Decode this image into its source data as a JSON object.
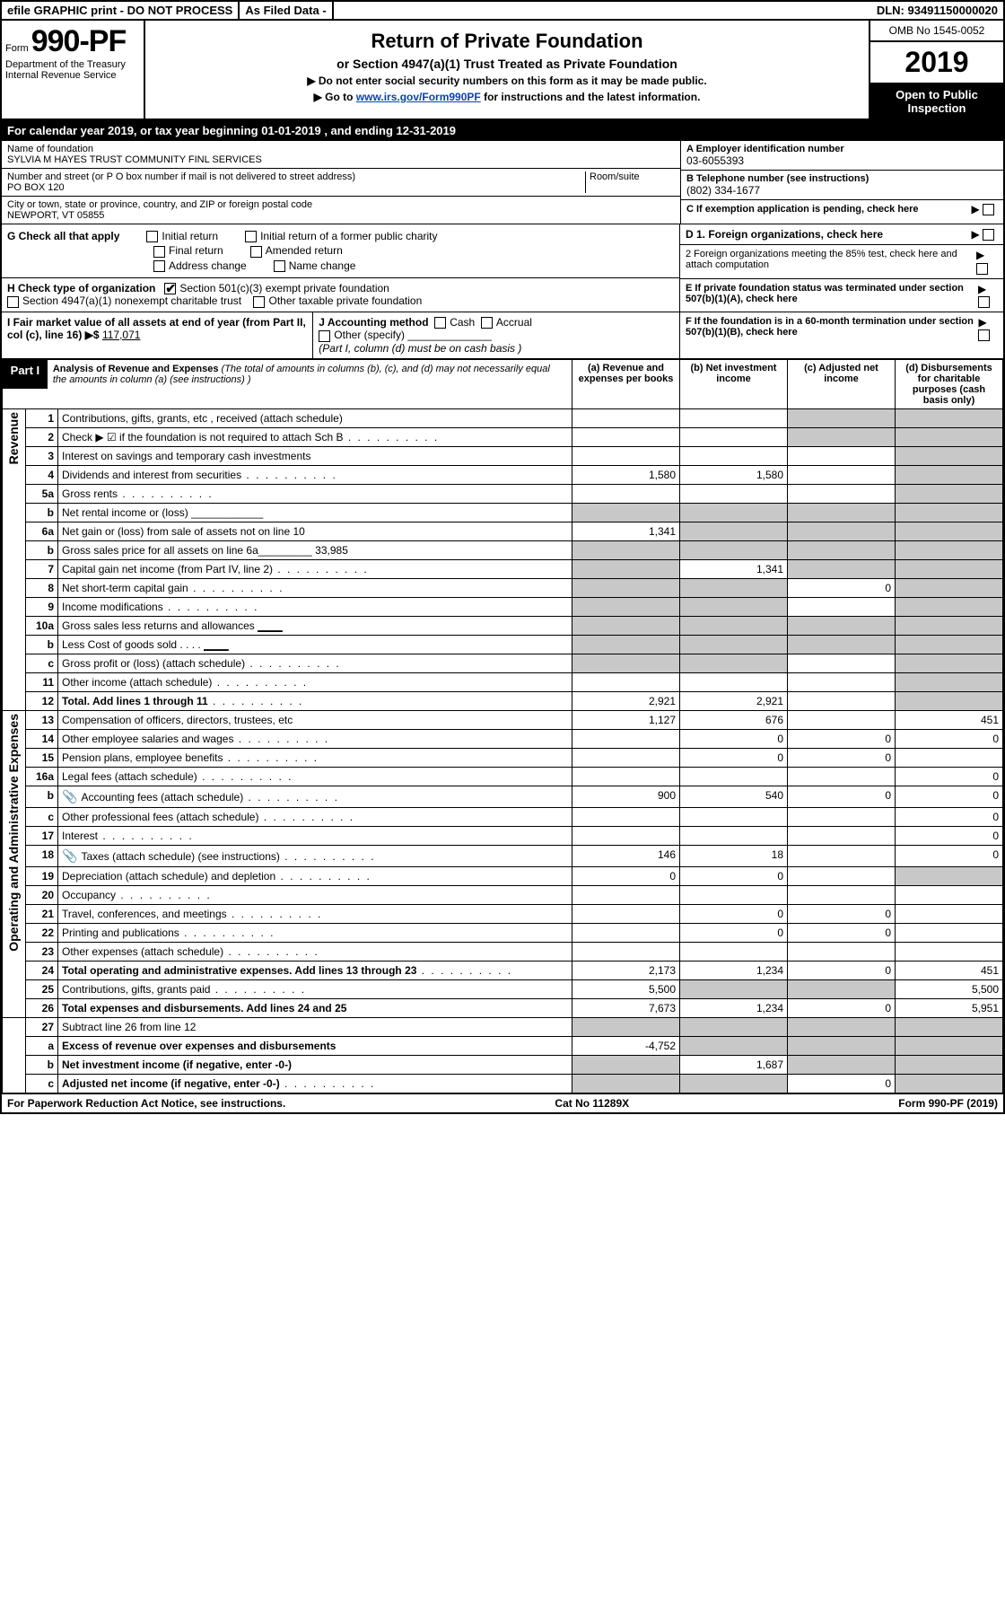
{
  "top": {
    "efile": "efile GRAPHIC print - DO NOT PROCESS",
    "asfiled": "As Filed Data -",
    "dln": "DLN: 93491150000020"
  },
  "header": {
    "form_prefix": "Form",
    "form_no": "990-PF",
    "dept": "Department of the Treasury",
    "irs": "Internal Revenue Service",
    "title": "Return of Private Foundation",
    "subtitle": "or Section 4947(a)(1) Trust Treated as Private Foundation",
    "line1": "▶ Do not enter social security numbers on this form as it may be made public.",
    "line2_pre": "▶ Go to ",
    "line2_link": "www.irs.gov/Form990PF",
    "line2_post": " for instructions and the latest information.",
    "omb": "OMB No 1545-0052",
    "year": "2019",
    "open": "Open to Public Inspection"
  },
  "cal": "For calendar year 2019, or tax year beginning 01-01-2019            , and ending 12-31-2019",
  "entity": {
    "name_label": "Name of foundation",
    "name": "SYLVIA M HAYES TRUST COMMUNITY FINL SERVICES",
    "addr_label": "Number and street (or P O  box number if mail is not delivered to street address)",
    "room_label": "Room/suite",
    "addr": "PO BOX 120",
    "city_label": "City or town, state or province, country, and ZIP or foreign postal code",
    "city": "NEWPORT, VT  05855",
    "a_label": "A Employer identification number",
    "a_val": "03-6055393",
    "b_label": "B Telephone number (see instructions)",
    "b_val": "(802) 334-1677",
    "c_label": "C If exemption application is pending, check here"
  },
  "g": {
    "label": "G Check all that apply",
    "opts": [
      "Initial return",
      "Initial return of a former public charity",
      "Final return",
      "Amended return",
      "Address change",
      "Name change"
    ]
  },
  "h": {
    "label": "H Check type of organization",
    "o1": "Section 501(c)(3) exempt private foundation",
    "o2": "Section 4947(a)(1) nonexempt charitable trust",
    "o3": "Other taxable private foundation"
  },
  "i": {
    "label": "I Fair market value of all assets at end of year (from Part II, col  (c), line 16) ▶$ ",
    "val": "117,071"
  },
  "j": {
    "label": "J Accounting method",
    "cash": "Cash",
    "accrual": "Accrual",
    "other": "Other (specify)",
    "note": "(Part I, column (d) must be on cash basis )"
  },
  "d": {
    "d1": "D 1. Foreign organizations, check here",
    "d2": "2  Foreign organizations meeting the 85% test, check here and attach computation"
  },
  "e": "E  If private foundation status was terminated under section 507(b)(1)(A), check here",
  "f": "F  If the foundation is in a 60-month termination under section 507(b)(1)(B), check here",
  "part1": {
    "label": "Part I",
    "title": "Analysis of Revenue and Expenses",
    "note": "(The total of amounts in columns (b), (c), and (d) may not necessarily equal the amounts in column (a) (see instructions) )",
    "col_a": "(a) Revenue and expenses per books",
    "col_b": "(b) Net investment income",
    "col_c": "(c) Adjusted net income",
    "col_d": "(d) Disbursements for charitable purposes (cash basis only)"
  },
  "sides": {
    "revenue": "Revenue",
    "expenses": "Operating and Administrative Expenses"
  },
  "rows": [
    {
      "n": "1",
      "d": "Contributions, gifts, grants, etc , received (attach schedule)",
      "a": "",
      "b": "",
      "c": "g",
      "dd": "g"
    },
    {
      "n": "2",
      "d": "Check ▶ ☑ if the foundation is not required to attach Sch  B",
      "dots": true,
      "a": "",
      "b": "",
      "c": "g",
      "dd": "g"
    },
    {
      "n": "3",
      "d": "Interest on savings and temporary cash investments",
      "a": "",
      "b": "",
      "c": "",
      "dd": "g"
    },
    {
      "n": "4",
      "d": "Dividends and interest from securities",
      "dots": true,
      "a": "1,580",
      "b": "1,580",
      "c": "",
      "dd": "g"
    },
    {
      "n": "5a",
      "d": "Gross rents",
      "dots": true,
      "a": "",
      "b": "",
      "c": "",
      "dd": "g"
    },
    {
      "n": "b",
      "d": "Net rental income or (loss) ____________",
      "a": "g",
      "b": "g",
      "c": "g",
      "dd": "g"
    },
    {
      "n": "6a",
      "d": "Net gain or (loss) from sale of assets not on line 10",
      "a": "1,341",
      "b": "g",
      "c": "g",
      "dd": "g"
    },
    {
      "n": "b",
      "d": "Gross sales price for all assets on line 6a_________ 33,985",
      "a": "g",
      "b": "g",
      "c": "g",
      "dd": "g"
    },
    {
      "n": "7",
      "d": "Capital gain net income (from Part IV, line 2)",
      "dots": true,
      "a": "g",
      "b": "1,341",
      "c": "g",
      "dd": "g"
    },
    {
      "n": "8",
      "d": "Net short-term capital gain",
      "dots": true,
      "a": "g",
      "b": "g",
      "c": "0",
      "dd": "g"
    },
    {
      "n": "9",
      "d": "Income modifications",
      "dots": true,
      "a": "g",
      "b": "g",
      "c": "",
      "dd": "g"
    },
    {
      "n": "10a",
      "d": "Gross sales less returns and allowances ▁▁▁",
      "a": "g",
      "b": "g",
      "c": "g",
      "dd": "g"
    },
    {
      "n": "b",
      "d": "Less  Cost of goods sold     . . . . ▁▁▁",
      "a": "g",
      "b": "g",
      "c": "g",
      "dd": "g"
    },
    {
      "n": "c",
      "d": "Gross profit or (loss) (attach schedule)",
      "dots": true,
      "a": "g",
      "b": "g",
      "c": "",
      "dd": "g"
    },
    {
      "n": "11",
      "d": "Other income (attach schedule)",
      "dots": true,
      "a": "",
      "b": "",
      "c": "",
      "dd": "g"
    },
    {
      "n": "12",
      "d": "Total. Add lines 1 through 11",
      "dots": true,
      "bold": true,
      "a": "2,921",
      "b": "2,921",
      "c": "",
      "dd": "g"
    }
  ],
  "rows2": [
    {
      "n": "13",
      "d": "Compensation of officers, directors, trustees, etc",
      "a": "1,127",
      "b": "676",
      "c": "",
      "dd": "451"
    },
    {
      "n": "14",
      "d": "Other employee salaries and wages",
      "dots": true,
      "a": "",
      "b": "0",
      "c": "0",
      "dd": "0"
    },
    {
      "n": "15",
      "d": "Pension plans, employee benefits",
      "dots": true,
      "a": "",
      "b": "0",
      "c": "0",
      "dd": ""
    },
    {
      "n": "16a",
      "d": "Legal fees (attach schedule)",
      "dots": true,
      "a": "",
      "b": "",
      "c": "",
      "dd": "0"
    },
    {
      "n": "b",
      "d": "Accounting fees (attach schedule)",
      "dots": true,
      "icon": true,
      "a": "900",
      "b": "540",
      "c": "0",
      "dd": "0"
    },
    {
      "n": "c",
      "d": "Other professional fees (attach schedule)",
      "dots": true,
      "a": "",
      "b": "",
      "c": "",
      "dd": "0"
    },
    {
      "n": "17",
      "d": "Interest",
      "dots": true,
      "a": "",
      "b": "",
      "c": "",
      "dd": "0"
    },
    {
      "n": "18",
      "d": "Taxes (attach schedule) (see instructions)",
      "dots": true,
      "icon": true,
      "a": "146",
      "b": "18",
      "c": "",
      "dd": "0"
    },
    {
      "n": "19",
      "d": "Depreciation (attach schedule) and depletion",
      "dots": true,
      "a": "0",
      "b": "0",
      "c": "",
      "dd": "g"
    },
    {
      "n": "20",
      "d": "Occupancy",
      "dots": true,
      "a": "",
      "b": "",
      "c": "",
      "dd": ""
    },
    {
      "n": "21",
      "d": "Travel, conferences, and meetings",
      "dots": true,
      "a": "",
      "b": "0",
      "c": "0",
      "dd": ""
    },
    {
      "n": "22",
      "d": "Printing and publications",
      "dots": true,
      "a": "",
      "b": "0",
      "c": "0",
      "dd": ""
    },
    {
      "n": "23",
      "d": "Other expenses (attach schedule)",
      "dots": true,
      "a": "",
      "b": "",
      "c": "",
      "dd": ""
    },
    {
      "n": "24",
      "d": "Total operating and administrative expenses. Add lines 13 through 23",
      "dots": true,
      "bold": true,
      "a": "2,173",
      "b": "1,234",
      "c": "0",
      "dd": "451"
    },
    {
      "n": "25",
      "d": "Contributions, gifts, grants paid",
      "dots": true,
      "a": "5,500",
      "b": "g",
      "c": "g",
      "dd": "5,500"
    },
    {
      "n": "26",
      "d": "Total expenses and disbursements. Add lines 24 and 25",
      "bold": true,
      "a": "7,673",
      "b": "1,234",
      "c": "0",
      "dd": "5,951"
    }
  ],
  "rows3": [
    {
      "n": "27",
      "d": "Subtract line 26 from line 12",
      "a": "g",
      "b": "g",
      "c": "g",
      "dd": "g"
    },
    {
      "n": "a",
      "d": "Excess of revenue over expenses and disbursements",
      "bold": true,
      "a": "-4,752",
      "b": "g",
      "c": "g",
      "dd": "g"
    },
    {
      "n": "b",
      "d": "Net investment income (if negative, enter -0-)",
      "bold": true,
      "a": "g",
      "b": "1,687",
      "c": "g",
      "dd": "g"
    },
    {
      "n": "c",
      "d": "Adjusted net income (if negative, enter -0-)",
      "dots": true,
      "bold": true,
      "a": "g",
      "b": "g",
      "c": "0",
      "dd": "g"
    }
  ],
  "footer": {
    "left": "For Paperwork Reduction Act Notice, see instructions.",
    "mid": "Cat  No  11289X",
    "right": "Form 990-PF (2019)"
  }
}
